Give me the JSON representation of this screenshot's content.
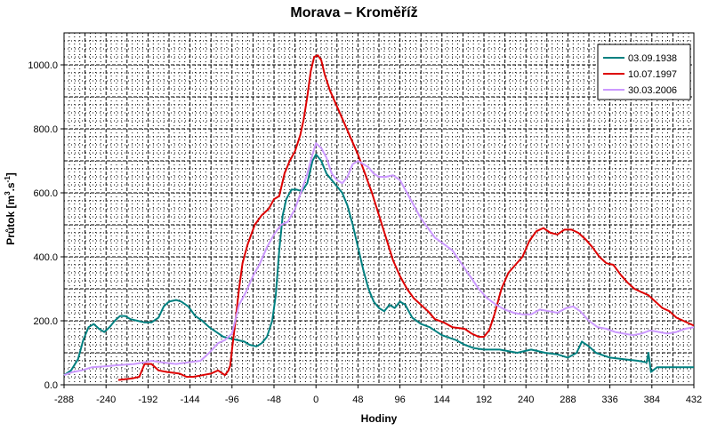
{
  "chart_data": {
    "type": "line",
    "title": "Morava – Kroměříž",
    "xlabel": "Hodiny",
    "ylabel": {
      "base": "Průtok [m",
      "sup1": "3",
      "mid": ".s",
      "sup2": "-1",
      "end": "]"
    },
    "xlim": [
      -288,
      432
    ],
    "ylim": [
      0,
      1100
    ],
    "x_ticks": [
      -288,
      -240,
      -192,
      -144,
      -96,
      -48,
      0,
      48,
      96,
      144,
      192,
      240,
      288,
      336,
      384,
      432
    ],
    "x_tick_labels": [
      "-288",
      "-240",
      "-192",
      "-144",
      "-96",
      "-48",
      "0",
      "48",
      "96",
      "144",
      "192",
      "240",
      "288",
      "336",
      "384",
      "432"
    ],
    "y_ticks": [
      0,
      200,
      400,
      600,
      800,
      1000
    ],
    "y_tick_labels": [
      "0.0",
      "200.0",
      "400.0",
      "600.0",
      "800.0",
      "1000.0"
    ],
    "grid": true,
    "legend_position": "top-right",
    "series": [
      {
        "name": "03.09.1938",
        "color": "#008080",
        "points": [
          [
            -288,
            30
          ],
          [
            -280,
            45
          ],
          [
            -272,
            80
          ],
          [
            -266,
            140
          ],
          [
            -260,
            180
          ],
          [
            -254,
            190
          ],
          [
            -248,
            175
          ],
          [
            -242,
            165
          ],
          [
            -236,
            180
          ],
          [
            -230,
            200
          ],
          [
            -224,
            215
          ],
          [
            -218,
            215
          ],
          [
            -212,
            205
          ],
          [
            -204,
            200
          ],
          [
            -196,
            195
          ],
          [
            -188,
            195
          ],
          [
            -180,
            210
          ],
          [
            -174,
            245
          ],
          [
            -168,
            260
          ],
          [
            -160,
            265
          ],
          [
            -154,
            260
          ],
          [
            -146,
            245
          ],
          [
            -138,
            215
          ],
          [
            -130,
            200
          ],
          [
            -122,
            180
          ],
          [
            -114,
            165
          ],
          [
            -106,
            150
          ],
          [
            -98,
            145
          ],
          [
            -90,
            140
          ],
          [
            -82,
            135
          ],
          [
            -76,
            125
          ],
          [
            -68,
            120
          ],
          [
            -62,
            130
          ],
          [
            -56,
            150
          ],
          [
            -50,
            200
          ],
          [
            -46,
            280
          ],
          [
            -42,
            420
          ],
          [
            -38,
            530
          ],
          [
            -34,
            580
          ],
          [
            -28,
            610
          ],
          [
            -22,
            610
          ],
          [
            -16,
            605
          ],
          [
            -10,
            630
          ],
          [
            -4,
            700
          ],
          [
            0,
            720
          ],
          [
            6,
            700
          ],
          [
            12,
            660
          ],
          [
            18,
            640
          ],
          [
            24,
            620
          ],
          [
            30,
            600
          ],
          [
            36,
            560
          ],
          [
            42,
            500
          ],
          [
            48,
            430
          ],
          [
            54,
            360
          ],
          [
            60,
            300
          ],
          [
            66,
            260
          ],
          [
            72,
            240
          ],
          [
            78,
            230
          ],
          [
            84,
            250
          ],
          [
            90,
            240
          ],
          [
            96,
            260
          ],
          [
            102,
            250
          ],
          [
            110,
            210
          ],
          [
            120,
            190
          ],
          [
            130,
            180
          ],
          [
            144,
            155
          ],
          [
            160,
            140
          ],
          [
            170,
            125
          ],
          [
            180,
            115
          ],
          [
            192,
            110
          ],
          [
            210,
            110
          ],
          [
            230,
            100
          ],
          [
            246,
            110
          ],
          [
            262,
            100
          ],
          [
            276,
            95
          ],
          [
            288,
            85
          ],
          [
            298,
            100
          ],
          [
            304,
            135
          ],
          [
            312,
            120
          ],
          [
            320,
            100
          ],
          [
            336,
            85
          ],
          [
            352,
            80
          ],
          [
            368,
            75
          ],
          [
            378,
            70
          ],
          [
            380,
            100
          ],
          [
            383,
            40
          ],
          [
            390,
            55
          ],
          [
            410,
            55
          ],
          [
            432,
            55
          ]
        ]
      },
      {
        "name": "10.07.1997",
        "color": "#dd0000",
        "points": [
          [
            -226,
            15
          ],
          [
            -210,
            20
          ],
          [
            -202,
            25
          ],
          [
            -196,
            65
          ],
          [
            -188,
            65
          ],
          [
            -180,
            45
          ],
          [
            -170,
            40
          ],
          [
            -156,
            35
          ],
          [
            -148,
            25
          ],
          [
            -140,
            25
          ],
          [
            -130,
            30
          ],
          [
            -120,
            35
          ],
          [
            -112,
            45
          ],
          [
            -104,
            30
          ],
          [
            -100,
            45
          ],
          [
            -98,
            60
          ],
          [
            -96,
            110
          ],
          [
            -92,
            200
          ],
          [
            -88,
            300
          ],
          [
            -84,
            380
          ],
          [
            -78,
            440
          ],
          [
            -70,
            500
          ],
          [
            -62,
            530
          ],
          [
            -54,
            550
          ],
          [
            -48,
            580
          ],
          [
            -42,
            590
          ],
          [
            -36,
            660
          ],
          [
            -30,
            700
          ],
          [
            -24,
            730
          ],
          [
            -18,
            780
          ],
          [
            -14,
            830
          ],
          [
            -10,
            900
          ],
          [
            -6,
            980
          ],
          [
            -2,
            1025
          ],
          [
            2,
            1030
          ],
          [
            6,
            1015
          ],
          [
            10,
            970
          ],
          [
            16,
            920
          ],
          [
            24,
            870
          ],
          [
            32,
            820
          ],
          [
            40,
            770
          ],
          [
            48,
            720
          ],
          [
            56,
            660
          ],
          [
            64,
            600
          ],
          [
            72,
            530
          ],
          [
            80,
            460
          ],
          [
            88,
            390
          ],
          [
            96,
            340
          ],
          [
            104,
            300
          ],
          [
            112,
            270
          ],
          [
            120,
            250
          ],
          [
            128,
            230
          ],
          [
            136,
            205
          ],
          [
            146,
            195
          ],
          [
            156,
            180
          ],
          [
            170,
            175
          ],
          [
            178,
            160
          ],
          [
            186,
            150
          ],
          [
            192,
            150
          ],
          [
            198,
            170
          ],
          [
            204,
            220
          ],
          [
            212,
            300
          ],
          [
            220,
            350
          ],
          [
            228,
            375
          ],
          [
            236,
            400
          ],
          [
            244,
            450
          ],
          [
            252,
            480
          ],
          [
            260,
            490
          ],
          [
            268,
            475
          ],
          [
            276,
            470
          ],
          [
            284,
            485
          ],
          [
            292,
            485
          ],
          [
            300,
            475
          ],
          [
            308,
            455
          ],
          [
            316,
            430
          ],
          [
            324,
            400
          ],
          [
            332,
            380
          ],
          [
            340,
            375
          ],
          [
            348,
            345
          ],
          [
            356,
            320
          ],
          [
            364,
            300
          ],
          [
            372,
            290
          ],
          [
            380,
            280
          ],
          [
            388,
            260
          ],
          [
            396,
            240
          ],
          [
            404,
            230
          ],
          [
            412,
            210
          ],
          [
            420,
            200
          ],
          [
            428,
            190
          ],
          [
            432,
            185
          ]
        ]
      },
      {
        "name": "30.03.2006",
        "color": "#cc99ff",
        "points": [
          [
            -288,
            30
          ],
          [
            -278,
            40
          ],
          [
            -268,
            45
          ],
          [
            -256,
            55
          ],
          [
            -240,
            58
          ],
          [
            -224,
            62
          ],
          [
            -208,
            65
          ],
          [
            -196,
            70
          ],
          [
            -188,
            75
          ],
          [
            -176,
            70
          ],
          [
            -160,
            65
          ],
          [
            -146,
            70
          ],
          [
            -132,
            75
          ],
          [
            -122,
            100
          ],
          [
            -112,
            130
          ],
          [
            -104,
            140
          ],
          [
            -96,
            160
          ],
          [
            -88,
            250
          ],
          [
            -80,
            290
          ],
          [
            -72,
            340
          ],
          [
            -64,
            380
          ],
          [
            -56,
            430
          ],
          [
            -48,
            470
          ],
          [
            -40,
            500
          ],
          [
            -32,
            510
          ],
          [
            -24,
            550
          ],
          [
            -16,
            610
          ],
          [
            -10,
            660
          ],
          [
            -4,
            720
          ],
          [
            0,
            755
          ],
          [
            6,
            740
          ],
          [
            12,
            710
          ],
          [
            18,
            660
          ],
          [
            24,
            640
          ],
          [
            30,
            630
          ],
          [
            36,
            650
          ],
          [
            42,
            690
          ],
          [
            48,
            700
          ],
          [
            54,
            690
          ],
          [
            60,
            680
          ],
          [
            66,
            660
          ],
          [
            72,
            650
          ],
          [
            80,
            650
          ],
          [
            88,
            655
          ],
          [
            96,
            640
          ],
          [
            104,
            600
          ],
          [
            112,
            560
          ],
          [
            120,
            520
          ],
          [
            128,
            490
          ],
          [
            136,
            460
          ],
          [
            146,
            440
          ],
          [
            156,
            420
          ],
          [
            166,
            380
          ],
          [
            176,
            340
          ],
          [
            186,
            300
          ],
          [
            196,
            270
          ],
          [
            206,
            250
          ],
          [
            216,
            235
          ],
          [
            226,
            225
          ],
          [
            236,
            220
          ],
          [
            246,
            220
          ],
          [
            256,
            235
          ],
          [
            266,
            230
          ],
          [
            276,
            225
          ],
          [
            286,
            240
          ],
          [
            294,
            245
          ],
          [
            302,
            230
          ],
          [
            312,
            200
          ],
          [
            322,
            180
          ],
          [
            332,
            175
          ],
          [
            342,
            165
          ],
          [
            352,
            160
          ],
          [
            362,
            155
          ],
          [
            372,
            160
          ],
          [
            382,
            170
          ],
          [
            392,
            165
          ],
          [
            402,
            160
          ],
          [
            412,
            165
          ],
          [
            422,
            175
          ],
          [
            432,
            180
          ]
        ]
      }
    ]
  }
}
